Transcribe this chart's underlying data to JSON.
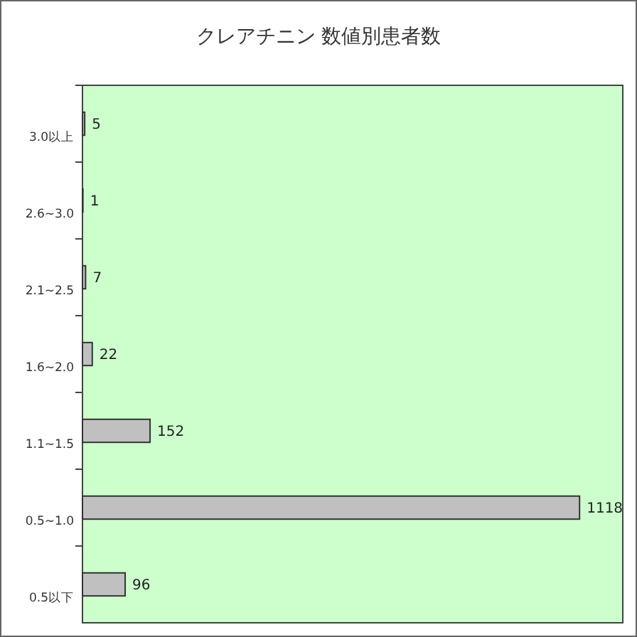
{
  "chart_data": {
    "type": "bar",
    "orientation": "horizontal",
    "title": "クレアチニン 数値別患者数",
    "categories": [
      "3.0以上",
      "2.6~3.0",
      "2.1~2.5",
      "1.6~2.0",
      "1.1~1.5",
      "0.5~1.0",
      "0.5以下"
    ],
    "values": [
      5,
      1,
      7,
      22,
      152,
      1118,
      96
    ],
    "color": "#c0c0c0",
    "data_labels": true
  }
}
